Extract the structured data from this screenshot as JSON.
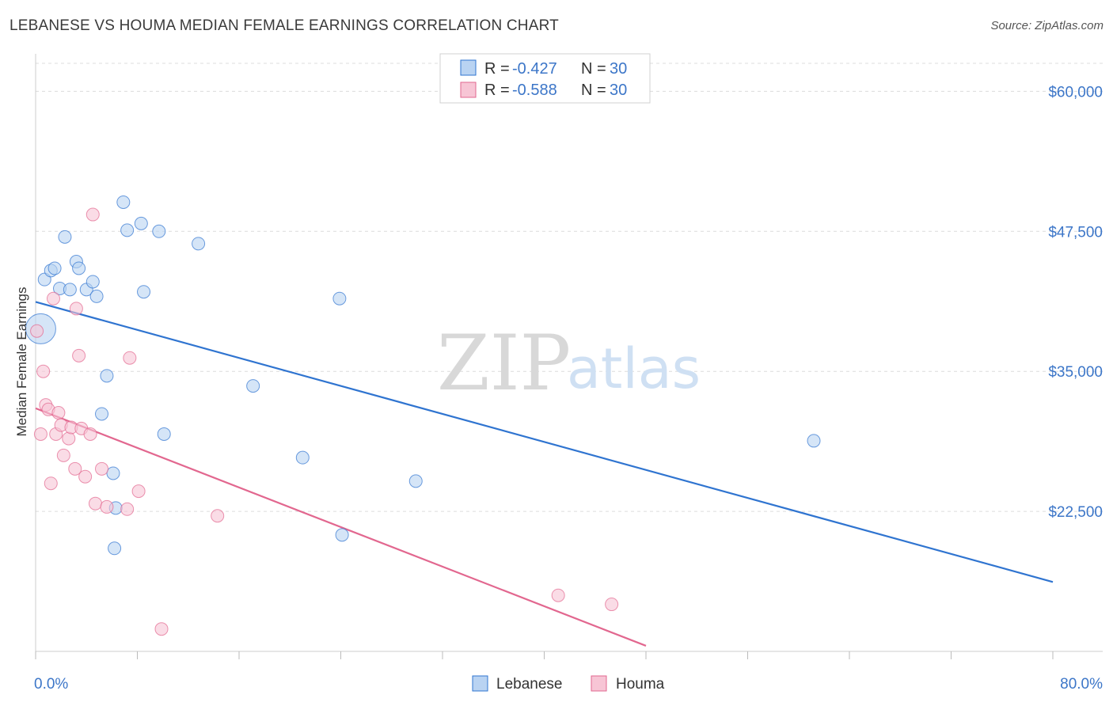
{
  "title": "LEBANESE VS HOUMA MEDIAN FEMALE EARNINGS CORRELATION CHART",
  "source": "Source: ZipAtlas.com",
  "watermark": {
    "zip": "ZIP",
    "atlas": "atlas"
  },
  "colors": {
    "lebanese": "#2f74d0",
    "lebanese_fill": "#b9d3f2",
    "houma": "#e2678f",
    "houma_fill": "#f7c5d5",
    "grid": "#dcdcdc"
  },
  "legend": {
    "rows": [
      {
        "r_label": "R = ",
        "r_value": "-0.427",
        "n_label": "N = ",
        "n_value": "30"
      },
      {
        "r_label": "R = ",
        "r_value": "-0.588",
        "n_label": "N = ",
        "n_value": "30"
      }
    ]
  },
  "chart_data": {
    "type": "scatter",
    "title": "LEBANESE VS HOUMA MEDIAN FEMALE EARNINGS CORRELATION CHART",
    "xlabel": "",
    "ylabel": "Median Female Earnings",
    "xlim": [
      0,
      80
    ],
    "ylim": [
      10000,
      62500
    ],
    "x_tick_labels": [
      "0.0%",
      "80.0%"
    ],
    "y_ticks": [
      22500,
      35000,
      47500,
      60000
    ],
    "y_tick_labels": [
      "$22,500",
      "$35,000",
      "$47,500",
      "$60,000"
    ],
    "grid": true,
    "legend_position": "top-center",
    "series": [
      {
        "name": "Lebanese",
        "r": -0.427,
        "n": 30,
        "trend": {
          "x": [
            0,
            80
          ],
          "y": [
            41200,
            16200
          ]
        },
        "points": [
          {
            "x": 0.4,
            "y": 38800,
            "big": true
          },
          {
            "x": 0.7,
            "y": 43200
          },
          {
            "x": 1.2,
            "y": 44000
          },
          {
            "x": 1.5,
            "y": 44200
          },
          {
            "x": 1.9,
            "y": 42400
          },
          {
            "x": 2.3,
            "y": 47000
          },
          {
            "x": 2.7,
            "y": 42300
          },
          {
            "x": 3.2,
            "y": 44800
          },
          {
            "x": 3.4,
            "y": 44200
          },
          {
            "x": 4.0,
            "y": 42300
          },
          {
            "x": 4.5,
            "y": 43000
          },
          {
            "x": 4.8,
            "y": 41700
          },
          {
            "x": 5.2,
            "y": 31200
          },
          {
            "x": 5.6,
            "y": 34600
          },
          {
            "x": 6.1,
            "y": 25900
          },
          {
            "x": 6.3,
            "y": 22800
          },
          {
            "x": 6.2,
            "y": 19200
          },
          {
            "x": 6.9,
            "y": 50100
          },
          {
            "x": 7.2,
            "y": 47600
          },
          {
            "x": 8.3,
            "y": 48200
          },
          {
            "x": 8.5,
            "y": 42100
          },
          {
            "x": 9.7,
            "y": 47500
          },
          {
            "x": 10.1,
            "y": 29400
          },
          {
            "x": 12.8,
            "y": 46400
          },
          {
            "x": 17.1,
            "y": 33700
          },
          {
            "x": 21.0,
            "y": 27300
          },
          {
            "x": 23.9,
            "y": 41500
          },
          {
            "x": 24.1,
            "y": 20400
          },
          {
            "x": 29.9,
            "y": 25200
          },
          {
            "x": 61.2,
            "y": 28800
          }
        ]
      },
      {
        "name": "Houma",
        "r": -0.588,
        "n": 30,
        "trend": {
          "x": [
            0,
            48
          ],
          "y": [
            31700,
            10500
          ]
        },
        "points": [
          {
            "x": 0.1,
            "y": 38600
          },
          {
            "x": 0.4,
            "y": 29400
          },
          {
            "x": 0.6,
            "y": 35000
          },
          {
            "x": 0.8,
            "y": 32000
          },
          {
            "x": 1.0,
            "y": 31600
          },
          {
            "x": 1.2,
            "y": 25000
          },
          {
            "x": 1.4,
            "y": 41500
          },
          {
            "x": 1.6,
            "y": 29400
          },
          {
            "x": 1.8,
            "y": 31300
          },
          {
            "x": 2.0,
            "y": 30200
          },
          {
            "x": 2.2,
            "y": 27500
          },
          {
            "x": 2.6,
            "y": 29000
          },
          {
            "x": 2.8,
            "y": 30000
          },
          {
            "x": 3.1,
            "y": 26300
          },
          {
            "x": 3.2,
            "y": 40600
          },
          {
            "x": 3.4,
            "y": 36400
          },
          {
            "x": 3.6,
            "y": 29900
          },
          {
            "x": 3.9,
            "y": 25600
          },
          {
            "x": 4.3,
            "y": 29400
          },
          {
            "x": 4.5,
            "y": 49000
          },
          {
            "x": 4.7,
            "y": 23200
          },
          {
            "x": 5.2,
            "y": 26300
          },
          {
            "x": 5.6,
            "y": 22900
          },
          {
            "x": 7.2,
            "y": 22700
          },
          {
            "x": 7.4,
            "y": 36200
          },
          {
            "x": 8.1,
            "y": 24300
          },
          {
            "x": 9.9,
            "y": 12000
          },
          {
            "x": 14.3,
            "y": 22100
          },
          {
            "x": 41.1,
            "y": 15000
          },
          {
            "x": 45.3,
            "y": 14200
          }
        ]
      }
    ]
  }
}
